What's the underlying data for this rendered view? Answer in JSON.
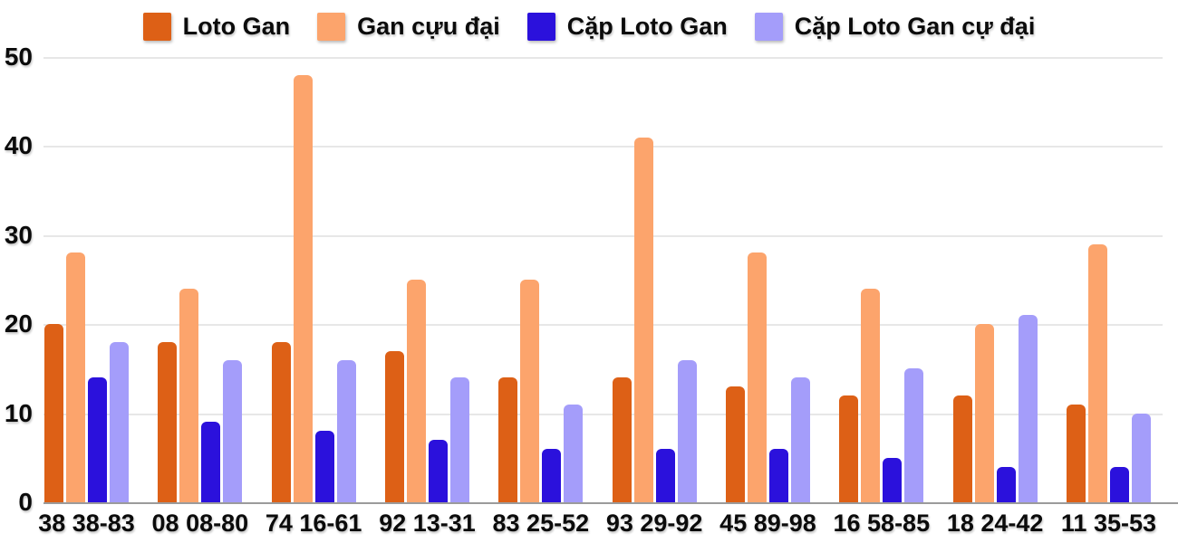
{
  "colors": {
    "background": "#ffffff",
    "grid": "#e7e7e7",
    "axis": "#9b9b9b",
    "text": "#0b0b0b"
  },
  "chart_data": {
    "type": "bar",
    "title": "",
    "xlabel": "",
    "ylabel": "",
    "ylim": [
      0,
      50
    ],
    "yticks": [
      0,
      10,
      20,
      30,
      40,
      50
    ],
    "grid": true,
    "legend_position": "top",
    "categories": [
      "38 38-83",
      "08 08-80",
      "74 16-61",
      "92 13-31",
      "83 25-52",
      "93 29-92",
      "45 89-98",
      "16 58-85",
      "18 24-42",
      "11 35-53"
    ],
    "series": [
      {
        "name": "Loto Gan",
        "color": "#dd6016",
        "values": [
          20,
          18,
          18,
          17,
          14,
          14,
          13,
          12,
          12,
          11
        ]
      },
      {
        "name": "Gan cựu đại",
        "color": "#fca46c",
        "values": [
          28,
          24,
          48,
          25,
          25,
          41,
          28,
          24,
          20,
          29
        ]
      },
      {
        "name": "Cặp Loto Gan",
        "color": "#2b11dc",
        "values": [
          14,
          9,
          8,
          7,
          6,
          6,
          6,
          5,
          4,
          4
        ]
      },
      {
        "name": "Cặp Loto Gan cự đại",
        "color": "#a49dfa",
        "values": [
          18,
          16,
          16,
          14,
          11,
          16,
          14,
          15,
          21,
          10
        ]
      }
    ]
  }
}
